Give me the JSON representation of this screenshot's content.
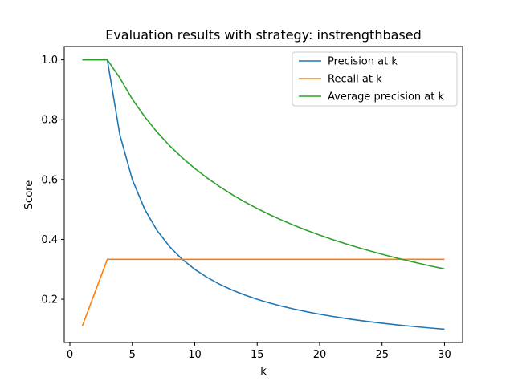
{
  "chart_data": {
    "type": "line",
    "title": "Evaluation results with strategy: instrengthbased",
    "xlabel": "k",
    "ylabel": "Score",
    "xlim": [
      -0.45,
      31.45
    ],
    "ylim": [
      0.0555,
      1.0445
    ],
    "xticks": [
      0,
      5,
      10,
      15,
      20,
      25,
      30
    ],
    "yticks": [
      0.2,
      0.4,
      0.6,
      0.8,
      1.0
    ],
    "ytick_labels": [
      "0.2",
      "0.4",
      "0.6",
      "0.8",
      "1.0"
    ],
    "grid": false,
    "legend_position": "top-right",
    "x": [
      1,
      2,
      3,
      4,
      5,
      6,
      7,
      8,
      9,
      10,
      11,
      12,
      13,
      14,
      15,
      16,
      17,
      18,
      19,
      20,
      21,
      22,
      23,
      24,
      25,
      26,
      27,
      28,
      29,
      30
    ],
    "series": [
      {
        "name": "Precision at k",
        "color": "#1f77b4",
        "values": [
          1.0,
          1.0,
          1.0,
          0.75,
          0.6,
          0.5,
          0.4286,
          0.375,
          0.3333,
          0.3,
          0.2727,
          0.25,
          0.2308,
          0.2143,
          0.2,
          0.1875,
          0.1765,
          0.1667,
          0.1579,
          0.15,
          0.1429,
          0.1364,
          0.1304,
          0.125,
          0.12,
          0.1154,
          0.1111,
          0.1071,
          0.1034,
          0.1
        ]
      },
      {
        "name": "Recall at k",
        "color": "#ff7f0e",
        "values": [
          0.1111,
          0.2222,
          0.3333,
          0.3333,
          0.3333,
          0.3333,
          0.3333,
          0.3333,
          0.3333,
          0.3333,
          0.3333,
          0.3333,
          0.3333,
          0.3333,
          0.3333,
          0.3333,
          0.3333,
          0.3333,
          0.3333,
          0.3333,
          0.3333,
          0.3333,
          0.3333,
          0.3333,
          0.3333,
          0.3333,
          0.3333,
          0.3333,
          0.3333,
          0.3333
        ]
      },
      {
        "name": "Average precision at k",
        "color": "#2ca02c",
        "values": [
          1.0,
          1.0,
          1.0,
          0.9397,
          0.8686,
          0.8095,
          0.7578,
          0.7125,
          0.6727,
          0.6371,
          0.6051,
          0.5761,
          0.5496,
          0.5254,
          0.5032,
          0.4827,
          0.4637,
          0.4461,
          0.4297,
          0.4144,
          0.4,
          0.3865,
          0.3738,
          0.3618,
          0.3504,
          0.3396,
          0.3293,
          0.3195,
          0.3102,
          0.3013
        ]
      }
    ]
  }
}
